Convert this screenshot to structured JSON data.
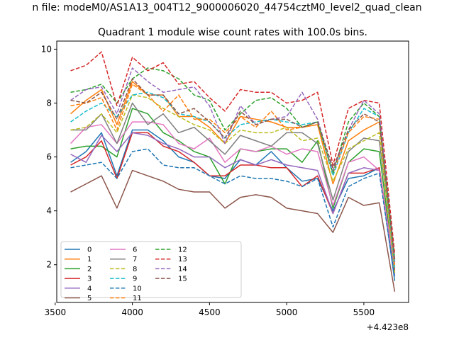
{
  "suptitle": "n file: modeM0/AS1A13_004T12_9000006020_44754cztM0_level2_quad_clean",
  "chart_data": {
    "type": "line",
    "title": "Quadrant 1 module wise count rates with 100.0s bins.",
    "xlabel": "",
    "ylabel": "",
    "x_offset_label": "+4.423e8",
    "x": [
      3600,
      3700,
      3800,
      3900,
      4000,
      4100,
      4200,
      4300,
      4400,
      4500,
      4600,
      4700,
      4800,
      4900,
      5000,
      5100,
      5200,
      5300,
      5400,
      5500,
      5600,
      5700
    ],
    "xlim": [
      3510,
      5790
    ],
    "ylim": [
      0.6,
      10.3
    ],
    "xticks": [
      3500,
      4000,
      4500,
      5000,
      5500
    ],
    "xtick_labels": [
      "3500",
      "4000",
      "4500",
      "5000",
      "5500"
    ],
    "yticks": [
      2,
      4,
      6,
      8,
      10
    ],
    "ytick_labels": [
      "2",
      "4",
      "6",
      "8",
      "10"
    ],
    "grid": false,
    "legend_position": "lower-left",
    "series": [
      {
        "name": "0",
        "color": "#1f77b4",
        "dash": "solid",
        "values": [
          5.8,
          6.2,
          6.9,
          5.3,
          7.0,
          7.0,
          6.6,
          6.0,
          5.8,
          5.3,
          5.2,
          5.9,
          5.7,
          6.2,
          5.6,
          5.1,
          5.2,
          4.0,
          5.2,
          5.3,
          5.6,
          1.4
        ]
      },
      {
        "name": "1",
        "color": "#ff7f0e",
        "dash": "solid",
        "values": [
          7.6,
          8.1,
          8.5,
          7.2,
          8.8,
          8.3,
          8.3,
          7.5,
          7.5,
          7.1,
          6.5,
          7.5,
          7.4,
          7.3,
          7.1,
          7.1,
          7.2,
          5.0,
          6.6,
          7.0,
          7.3,
          1.9
        ]
      },
      {
        "name": "2",
        "color": "#2ca02c",
        "dash": "solid",
        "values": [
          6.3,
          6.4,
          6.4,
          6.0,
          7.8,
          7.6,
          6.9,
          6.6,
          6.2,
          6.0,
          5.0,
          6.3,
          6.2,
          6.3,
          6.3,
          5.8,
          6.6,
          4.1,
          5.8,
          6.3,
          6.2,
          1.7
        ]
      },
      {
        "name": "3",
        "color": "#d62728",
        "dash": "solid",
        "values": [
          5.7,
          6.0,
          6.6,
          5.2,
          6.9,
          6.9,
          6.4,
          6.2,
          5.8,
          5.3,
          5.3,
          5.7,
          5.7,
          5.6,
          5.6,
          4.9,
          5.3,
          3.9,
          5.4,
          5.4,
          5.6,
          1.8
        ]
      },
      {
        "name": "4",
        "color": "#9467bd",
        "dash": "solid",
        "values": [
          6.1,
          5.8,
          6.8,
          6.2,
          6.9,
          6.8,
          6.5,
          6.3,
          6.0,
          6.0,
          5.6,
          5.9,
          5.7,
          5.9,
          5.7,
          5.6,
          5.5,
          3.9,
          5.4,
          5.6,
          5.5,
          1.6
        ]
      },
      {
        "name": "5",
        "color": "#8c564b",
        "dash": "solid",
        "values": [
          4.7,
          5.0,
          5.3,
          4.1,
          5.5,
          5.3,
          5.1,
          4.8,
          4.7,
          4.7,
          4.1,
          4.5,
          4.6,
          4.5,
          4.1,
          4.0,
          3.9,
          3.2,
          4.5,
          4.2,
          4.3,
          1.0
        ]
      },
      {
        "name": "6",
        "color": "#e377c2",
        "dash": "solid",
        "values": [
          6.5,
          7.1,
          7.2,
          6.5,
          7.3,
          7.3,
          7.2,
          6.5,
          6.3,
          6.7,
          5.8,
          6.3,
          6.2,
          6.4,
          6.1,
          6.3,
          6.2,
          4.2,
          5.8,
          6.0,
          5.5,
          1.9
        ]
      },
      {
        "name": "7",
        "color": "#7f7f7f",
        "dash": "solid",
        "values": [
          7.0,
          7.0,
          7.6,
          6.5,
          8.0,
          7.2,
          7.6,
          6.9,
          7.1,
          6.6,
          6.1,
          6.8,
          6.6,
          6.4,
          6.9,
          6.9,
          6.5,
          4.4,
          6.2,
          6.7,
          6.6,
          2.1
        ]
      },
      {
        "name": "8",
        "color": "#bcbd22",
        "dash": "dashed",
        "values": [
          7.0,
          7.1,
          7.6,
          6.9,
          8.3,
          8.2,
          7.8,
          7.5,
          7.2,
          7.0,
          6.5,
          7.0,
          6.9,
          6.9,
          7.1,
          6.6,
          6.7,
          5.1,
          6.3,
          6.6,
          6.9,
          1.7
        ]
      },
      {
        "name": "9",
        "color": "#17becf",
        "dash": "dashed",
        "values": [
          7.3,
          7.7,
          8.0,
          7.5,
          8.3,
          8.4,
          8.2,
          7.6,
          7.5,
          7.3,
          6.7,
          7.2,
          7.3,
          7.4,
          7.3,
          7.2,
          7.3,
          5.3,
          6.9,
          7.8,
          7.5,
          1.9
        ]
      },
      {
        "name": "10",
        "color": "#1f77b4",
        "dash": "dashed",
        "values": [
          5.6,
          5.7,
          5.8,
          5.2,
          6.2,
          6.3,
          5.7,
          5.6,
          5.6,
          5.3,
          5.0,
          5.3,
          5.2,
          5.2,
          5.1,
          4.9,
          5.2,
          3.4,
          4.9,
          5.2,
          5.4,
          1.5
        ]
      },
      {
        "name": "11",
        "color": "#ff7f0e",
        "dash": "dashed",
        "values": [
          7.9,
          8.0,
          8.2,
          7.0,
          8.7,
          8.3,
          7.7,
          8.3,
          7.4,
          7.4,
          6.9,
          7.5,
          7.1,
          7.7,
          7.0,
          7.1,
          7.2,
          5.4,
          6.9,
          7.5,
          7.4,
          2.0
        ]
      },
      {
        "name": "12",
        "color": "#2ca02c",
        "dash": "dashed",
        "values": [
          8.4,
          8.5,
          8.7,
          8.0,
          8.9,
          9.3,
          9.2,
          8.9,
          8.3,
          8.1,
          7.0,
          7.6,
          8.1,
          8.2,
          7.8,
          7.1,
          7.3,
          5.4,
          7.3,
          8.0,
          7.5,
          2.2
        ]
      },
      {
        "name": "13",
        "color": "#d62728",
        "dash": "dashed",
        "values": [
          9.2,
          9.4,
          9.9,
          7.9,
          9.7,
          9.2,
          9.5,
          8.7,
          8.8,
          8.2,
          7.7,
          8.5,
          8.4,
          8.4,
          8.0,
          8.1,
          8.4,
          5.7,
          7.8,
          8.1,
          8.0,
          2.4
        ]
      },
      {
        "name": "14",
        "color": "#9467bd",
        "dash": "dashed",
        "values": [
          8.1,
          8.5,
          8.6,
          7.6,
          9.3,
          8.8,
          8.4,
          8.5,
          8.6,
          7.9,
          6.5,
          7.9,
          7.2,
          7.4,
          7.5,
          8.4,
          7.4,
          5.5,
          7.0,
          8.1,
          7.6,
          2.1
        ]
      },
      {
        "name": "15",
        "color": "#8c564b",
        "dash": "dashed",
        "values": [
          8.1,
          8.0,
          8.4,
          7.4,
          8.9,
          8.3,
          8.3,
          7.6,
          7.8,
          7.3,
          6.7,
          7.7,
          7.2,
          7.4,
          7.4,
          7.1,
          7.3,
          5.6,
          7.0,
          7.6,
          7.3,
          2.2
        ]
      }
    ]
  }
}
